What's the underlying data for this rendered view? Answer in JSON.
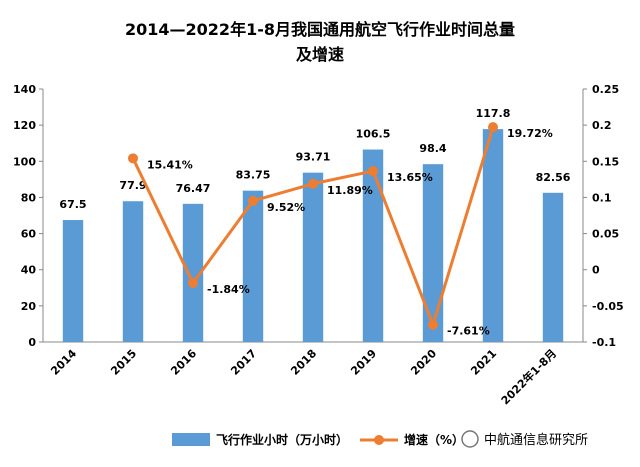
{
  "chart_data": {
    "type": "bar",
    "title_line1": "2014—2022年1-8月我国通用航空飞行作业时间总量",
    "title_line2": "及增速",
    "categories": [
      "2014",
      "2015",
      "2016",
      "2017",
      "2018",
      "2019",
      "2020",
      "2021",
      "2022年1-8月"
    ],
    "series": [
      {
        "name": "飞行作业小时（万小时）",
        "kind": "bar",
        "axis": "left",
        "color": "#5b9bd5",
        "values": [
          67.5,
          77.9,
          76.47,
          83.75,
          93.71,
          106.5,
          98.4,
          117.8,
          82.56
        ],
        "labels": [
          "67.5",
          "77.9",
          "76.47",
          "83.75",
          "93.71",
          "106.5",
          "98.4",
          "117.8",
          "82.56"
        ]
      },
      {
        "name": "增速（%）",
        "kind": "line",
        "axis": "right",
        "color": "#ed7d31",
        "values": [
          null,
          0.1541,
          -0.0184,
          0.0952,
          0.1189,
          0.1365,
          -0.0761,
          0.1972,
          null
        ],
        "labels": [
          "",
          "15.41%",
          "-1.84%",
          "9.52%",
          "11.89%",
          "13.65%",
          "-7.61%",
          "19.72%",
          ""
        ]
      }
    ],
    "y_left": {
      "min": 0,
      "max": 140,
      "ticks": [
        "0",
        "20",
        "40",
        "60",
        "80",
        "100",
        "120",
        "140"
      ]
    },
    "y_right": {
      "min": -0.1,
      "max": 0.25,
      "ticks": [
        "-0.1",
        "-0.05",
        "0",
        "0.05",
        "0.1",
        "0.15",
        "0.2",
        "0.25"
      ]
    },
    "grid": false,
    "legend": "bottom"
  },
  "source_text": "中航通信息研究所"
}
